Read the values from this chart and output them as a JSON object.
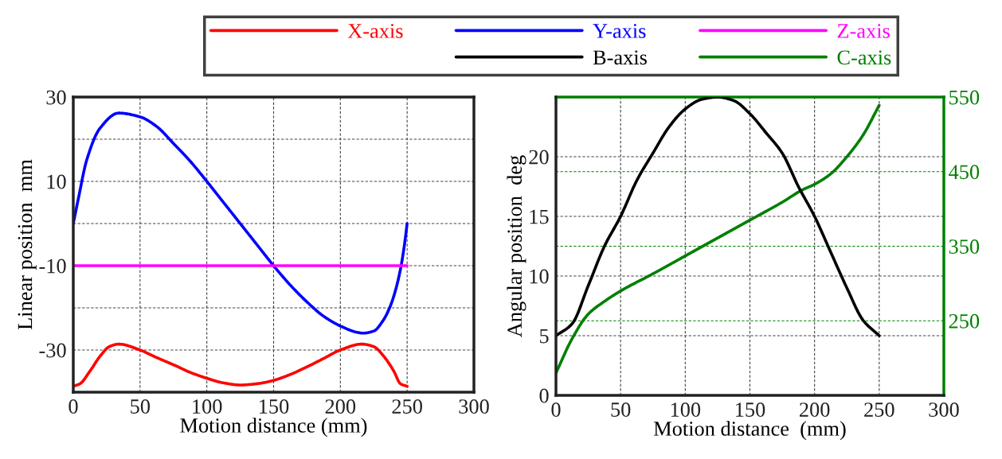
{
  "chart_data": [
    {
      "type": "line",
      "xlabel": "Motion distance (mm)",
      "ylabel": "Linear position  mm",
      "xlim": [
        0,
        300
      ],
      "xticks": [
        0,
        50,
        100,
        150,
        200,
        250,
        300
      ],
      "ylim": [
        -40,
        30
      ],
      "yticks": [
        {
          "value": -40,
          "label": null
        },
        -30,
        {
          "value": -20,
          "label": null
        },
        -10,
        {
          "value": 0,
          "label": null
        },
        10,
        {
          "value": 20,
          "label": null
        },
        30
      ],
      "grid": true,
      "legend": "top",
      "line_style": "solid",
      "series": [
        {
          "name": "X-axis",
          "color": "#ff0000",
          "x": [
            0,
            5,
            12.5,
            20,
            27,
            34,
            50,
            62.5,
            75,
            87.5,
            100,
            112.5,
            125,
            137.5,
            150,
            162.5,
            175,
            187.5,
            200,
            216,
            225,
            232.5,
            240,
            245,
            250
          ],
          "values": [
            -38.6,
            -38,
            -35,
            -31.5,
            -29.2,
            -28.6,
            -30,
            -31.8,
            -33.5,
            -35.3,
            -36.7,
            -37.8,
            -38.3,
            -38,
            -37.2,
            -35.8,
            -34,
            -32,
            -30,
            -28.6,
            -29.2,
            -31.5,
            -35,
            -38,
            -38.6
          ]
        },
        {
          "name": "Y-axis",
          "color": "#0000ff",
          "x": [
            0,
            4,
            10,
            20,
            34,
            50,
            62.5,
            75,
            87.5,
            100,
            112.5,
            125,
            137.5,
            150,
            162.5,
            175,
            187.5,
            200,
            212.5,
            217,
            225,
            232,
            237.5,
            242,
            245.5,
            248,
            250
          ],
          "values": [
            0,
            6.2,
            15,
            22.6,
            26.2,
            25.3,
            23,
            19,
            14.8,
            10,
            5,
            0,
            -5,
            -10,
            -14.6,
            -18.6,
            -22,
            -24.3,
            -25.8,
            -26,
            -25.5,
            -23,
            -19.5,
            -15,
            -10,
            -5,
            0
          ]
        },
        {
          "name": "Z-axis",
          "color": "#ff00ff",
          "x": [
            0,
            250
          ],
          "values": [
            -10,
            -10
          ]
        }
      ]
    },
    {
      "type": "line",
      "xlabel": "Motion distance  (mm)",
      "ylabel": "Angular position  deg",
      "xlim": [
        0,
        300
      ],
      "xticks": [
        0,
        50,
        100,
        150,
        200,
        250,
        300
      ],
      "ylim": [
        0,
        25
      ],
      "yticks": [
        0,
        5,
        10,
        15,
        20,
        {
          "value": 25,
          "label": null
        }
      ],
      "y2lim": [
        150,
        550
      ],
      "y2ticks": [
        250,
        350,
        450,
        550
      ],
      "grid": true,
      "legend": "top",
      "line_style": "solid",
      "series": [
        {
          "name": "B-axis",
          "color": "#000000",
          "x": [
            0,
            12.5,
            25,
            37.5,
            50,
            62.5,
            75,
            87.5,
            100,
            112.5,
            125,
            137.5,
            150,
            162.5,
            175,
            187.5,
            200,
            212.5,
            225,
            237.5,
            250
          ],
          "values": [
            5,
            6,
            9.2,
            12.5,
            15,
            18,
            20.3,
            22.5,
            24,
            24.8,
            25,
            24.7,
            23.6,
            22,
            20.3,
            17.5,
            15,
            12,
            9,
            6.3,
            5
          ]
        },
        {
          "name": "C-axis",
          "color": "#008000",
          "axis": "y2",
          "x": [
            0,
            12.5,
            25,
            37.5,
            50,
            75,
            100,
            125,
            150,
            175,
            190,
            200,
            212.5,
            225,
            237.5,
            250
          ],
          "values": [
            180,
            226,
            259,
            276,
            290,
            313,
            337,
            361,
            385,
            409,
            425,
            433,
            447,
            470,
            499,
            539
          ]
        }
      ]
    }
  ]
}
